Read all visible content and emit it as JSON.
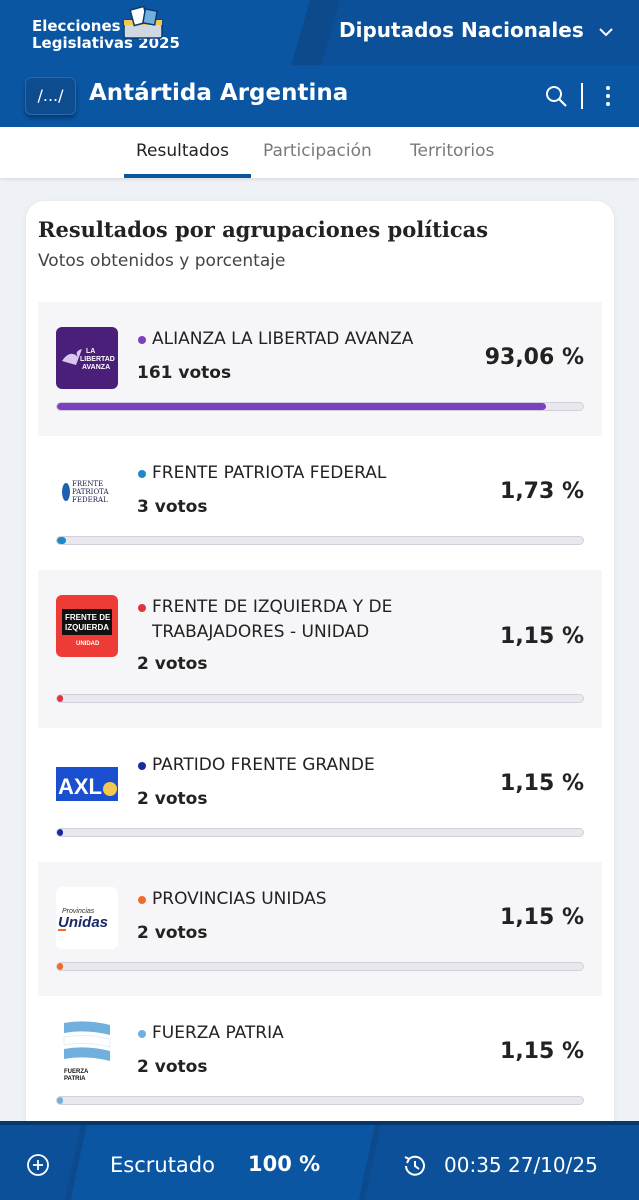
{
  "header": {
    "brand_line1": "Elecciones",
    "brand_line2": "Legislativas 2025",
    "section": "Diputados Nacionales",
    "path_button": "/.../",
    "location": "Antártida Argentina",
    "brand_icon": "ballot-box-icon",
    "dropdown_icon": "chevron-down-icon",
    "search_icon": "search-icon",
    "menu_icon": "more-vertical-icon"
  },
  "tabs": [
    {
      "label": "Resultados",
      "active": true
    },
    {
      "label": "Participación",
      "active": false
    },
    {
      "label": "Territorios",
      "active": false
    }
  ],
  "card": {
    "title": "Resultados por agrupaciones políticas",
    "subtitle": "Votos obtenidos y porcentaje"
  },
  "parties": [
    {
      "name": "ALIANZA LA LIBERTAD AVANZA",
      "votes": "161 votos",
      "percent": "93,06 %",
      "share": 93.06,
      "color": "#7b3fbf",
      "logo_text": "LA LIBERTAD AVANZA"
    },
    {
      "name": "FRENTE PATRIOTA FEDERAL",
      "votes": "3 votos",
      "percent": "1,73 %",
      "share": 1.73,
      "color": "#1e88c8",
      "logo_text": "FRENTE PATRIOTA FEDERAL"
    },
    {
      "name": "FRENTE DE IZQUIERDA Y DE TRABAJADORES - UNIDAD",
      "votes": "2 votos",
      "percent": "1,15 %",
      "share": 1.15,
      "color": "#e0343f",
      "logo_text": "FRENTE DE IZQUIERDA"
    },
    {
      "name": "PARTIDO FRENTE GRANDE",
      "votes": "2 votos",
      "percent": "1,15 %",
      "share": 1.15,
      "color": "#1a2a9a",
      "logo_text": "AXL"
    },
    {
      "name": "PROVINCIAS UNIDAS",
      "votes": "2 votos",
      "percent": "1,15 %",
      "share": 1.15,
      "color": "#f06a2a",
      "logo_text": "Unidas"
    },
    {
      "name": "FUERZA PATRIA",
      "votes": "2 votos",
      "percent": "1,15 %",
      "share": 1.15,
      "color": "#6fb0de",
      "logo_text": "FUERZA PATRIA"
    }
  ],
  "footer": {
    "scrutiny_label": "Escrutado",
    "scrutiny_value": "100 %",
    "timestamp": "00:35 27/10/25",
    "add_icon": "plus-circle-icon",
    "clock_icon": "history-clock-icon"
  }
}
